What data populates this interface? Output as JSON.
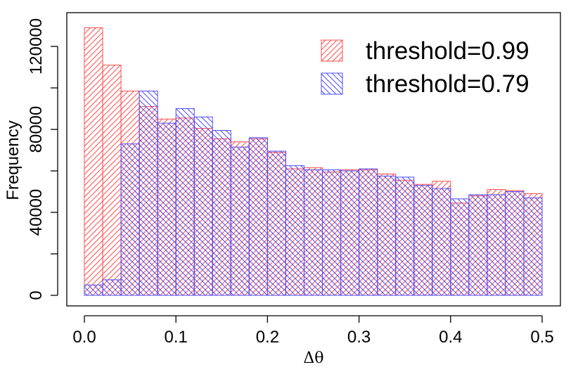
{
  "chart_data": {
    "type": "bar",
    "subtype": "overlaid-histogram",
    "title": "",
    "xlabel": "Δθ",
    "ylabel": "Frequency",
    "bin_width": 0.02,
    "bin_edges": [
      0.0,
      0.02,
      0.04,
      0.06,
      0.08,
      0.1,
      0.12,
      0.14,
      0.16,
      0.18,
      0.2,
      0.22,
      0.24,
      0.26,
      0.28,
      0.3,
      0.32,
      0.34,
      0.36,
      0.38,
      0.4,
      0.42,
      0.44,
      0.46,
      0.48,
      0.5
    ],
    "xlim": [
      0.0,
      0.5
    ],
    "ylim": [
      0,
      120000
    ],
    "x_ticks": [
      0.0,
      0.1,
      0.2,
      0.3,
      0.4,
      0.5
    ],
    "x_tick_labels": [
      "0.0",
      "0.1",
      "0.2",
      "0.3",
      "0.4",
      "0.5"
    ],
    "y_ticks": [
      0,
      20000,
      40000,
      60000,
      80000,
      100000,
      120000
    ],
    "y_tick_labels": [
      "0",
      "",
      "40000",
      "",
      "80000",
      "",
      "120000"
    ],
    "grid": false,
    "legend_position": "top-right",
    "series": [
      {
        "name": "threshold=0.99",
        "color": "#ff4d4d",
        "hatch": "diagonal-forward",
        "values": [
          129000,
          111000,
          98500,
          91000,
          85000,
          85500,
          80500,
          75500,
          74000,
          75500,
          69000,
          61000,
          61500,
          59500,
          60500,
          60500,
          58500,
          55500,
          53500,
          55000,
          44500,
          48000,
          51000,
          50500,
          49000
        ]
      },
      {
        "name": "threshold=0.79",
        "color": "#4d4dff",
        "hatch": "diagonal-backward",
        "values": [
          5000,
          7500,
          73000,
          98500,
          83000,
          90000,
          86000,
          79500,
          71500,
          76000,
          69500,
          62500,
          60500,
          60500,
          60000,
          61000,
          57500,
          57000,
          53000,
          51500,
          46500,
          48500,
          48500,
          50000,
          47000
        ]
      }
    ]
  }
}
